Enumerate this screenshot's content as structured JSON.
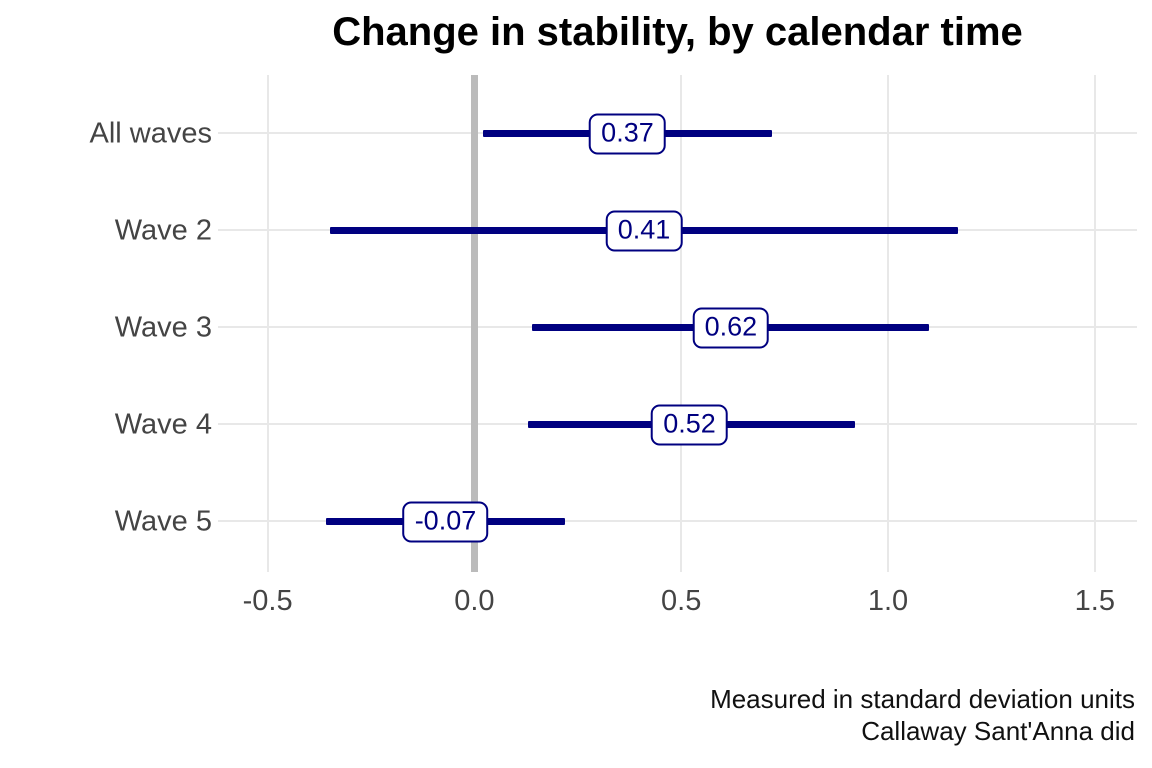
{
  "title": "Change in stability, by calendar time",
  "caption": {
    "line1": "Measured in standard deviation units",
    "line2": "Callaway Sant'Anna did"
  },
  "colors": {
    "ci_line": "#000080",
    "estimate_box_border": "#000080",
    "estimate_box_bg": "#ffffff",
    "estimate_text": "#000080",
    "zero_line": "#bbbbbb",
    "gridline": "#e8e8e8",
    "axis_text": "#444444",
    "title_text": "#000000",
    "background": "#ffffff"
  },
  "chart_data": {
    "type": "scatter",
    "subtype": "horizontal-interval-forest-plot",
    "title": "Change in stability, by calendar time",
    "xlabel": "",
    "ylabel": "",
    "categories": [
      "All waves",
      "Wave 2",
      "Wave 3",
      "Wave 4",
      "Wave 5"
    ],
    "estimates": [
      0.37,
      0.41,
      0.62,
      0.52,
      -0.07
    ],
    "estimate_labels": [
      "0.37",
      "0.41",
      "0.62",
      "0.52",
      "-0.07"
    ],
    "ci_low": [
      0.02,
      -0.35,
      0.14,
      0.13,
      -0.36
    ],
    "ci_high": [
      0.72,
      1.17,
      1.1,
      0.92,
      0.22
    ],
    "x_ticks": [
      -0.5,
      0.0,
      0.5,
      1.0,
      1.5
    ],
    "x_tick_labels": [
      "-0.5",
      "0.0",
      "0.5",
      "1.0",
      "1.5"
    ],
    "xlim": [
      -0.62,
      1.602
    ],
    "reference_line_x": 0,
    "grid": true,
    "legend": false,
    "caption": "Measured in standard deviation units\nCallaway Sant'Anna did"
  }
}
